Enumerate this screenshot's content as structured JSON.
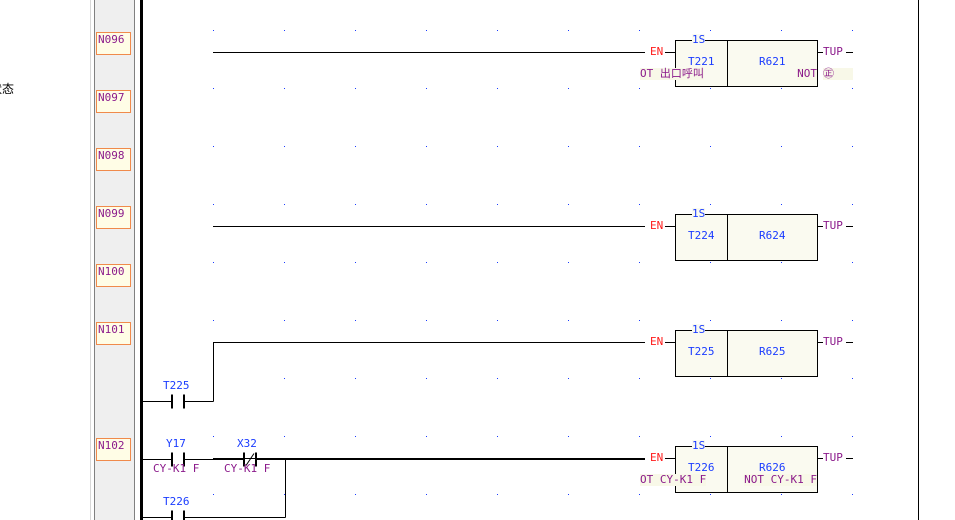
{
  "left_panel": {
    "text": "状态"
  },
  "rungs": [
    {
      "label": "N096",
      "block": {
        "time": "1S",
        "timer": "T221",
        "reg": "R621",
        "en": "EN",
        "out": "TUP",
        "timer_comment": "OT 出口呼叫",
        "reg_comment": "NOT",
        "out_comment": "㊣"
      }
    },
    {
      "label": "N097"
    },
    {
      "label": "N098"
    },
    {
      "label": "N099",
      "block": {
        "time": "1S",
        "timer": "T224",
        "reg": "R624",
        "en": "EN",
        "out": "TUP"
      }
    },
    {
      "label": "N100"
    },
    {
      "label": "N101",
      "block": {
        "time": "1S",
        "timer": "T225",
        "reg": "R625",
        "en": "EN",
        "out": "TUP"
      },
      "contacts": [
        {
          "addr": "T225",
          "type": "NO"
        }
      ]
    },
    {
      "label": "N102",
      "block": {
        "time": "1S",
        "timer": "T226",
        "reg": "R626",
        "en": "EN",
        "out": "TUP",
        "timer_comment": "OT CY-K1 F",
        "reg_comment": "NOT CY-K1 F"
      },
      "contacts": [
        {
          "addr": "Y17",
          "type": "NO",
          "comment": "CY-K1 F"
        },
        {
          "addr": "X32",
          "type": "NC",
          "comment": "CY-K1 F"
        },
        {
          "addr": "T226",
          "type": "NO"
        }
      ]
    }
  ],
  "colors": {
    "addr": "#1a3cff",
    "en": "#ff1a1a",
    "comment": "#8b1a8b",
    "label_border": "#f08a4b",
    "label_bg": "#fffde6",
    "block_bg": "#fafaf0"
  }
}
